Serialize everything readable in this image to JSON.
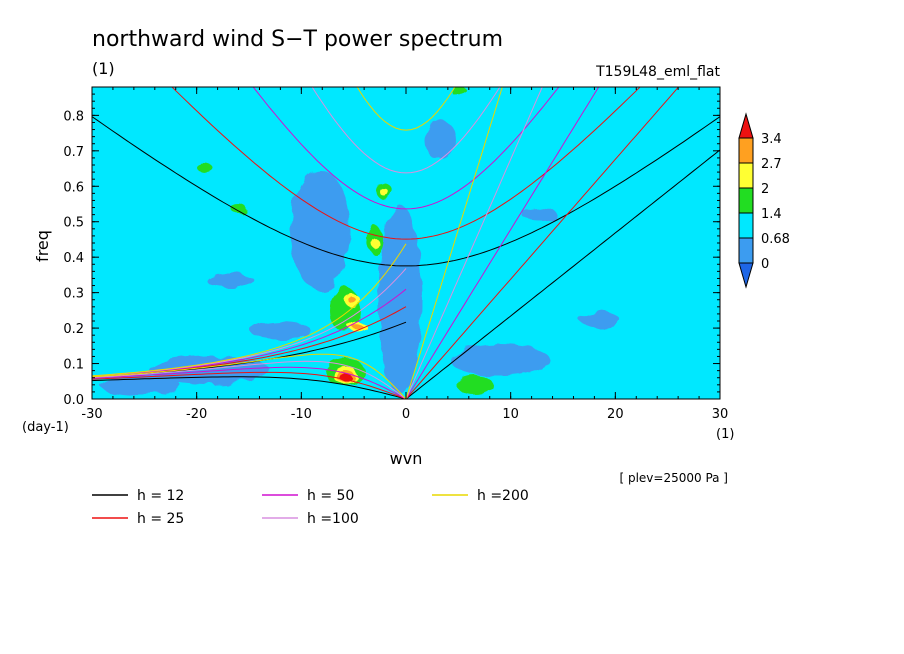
{
  "chart_data": {
    "type": "heatmap",
    "title": "northward wind S−T power spectrum",
    "units_label": "(1)",
    "case_label": "T159L48_eml_flat",
    "xlabel": "wvn",
    "ylabel": "freq",
    "x_units": "(1)",
    "y_units": "(day-1)",
    "note": "[ plev=25000 Pa ]",
    "xlim": [
      -30,
      30
    ],
    "ylim": [
      0,
      0.88
    ],
    "x_ticks": [
      -30,
      -20,
      -10,
      0,
      10,
      20,
      30
    ],
    "y_ticks": [
      0.0,
      0.1,
      0.2,
      0.3,
      0.4,
      0.5,
      0.6,
      0.7,
      0.8
    ],
    "colorbar": {
      "levels": [
        "0",
        "0.68",
        "1.4",
        "2",
        "2.7",
        "3.4"
      ],
      "colors": [
        "#1e66e6",
        "#3c9cf0",
        "#00e8ff",
        "#22dd22",
        "#ffff33",
        "#ffa020",
        "#ee1111"
      ]
    },
    "curves": [
      {
        "name": "h = 12",
        "h": 12,
        "color": "#000000"
      },
      {
        "name": "h = 25",
        "h": 25,
        "color": "#ee1111"
      },
      {
        "name": "h = 50",
        "h": 50,
        "color": "#d010d0"
      },
      {
        "name": "h =100",
        "h": 100,
        "color": "#d890e0"
      },
      {
        "name": "h =200",
        "h": 200,
        "color": "#e8d800"
      }
    ],
    "features": [
      {
        "k": -6,
        "f": 0.07,
        "level": 3.4
      },
      {
        "k": -5,
        "f": 0.27,
        "level": 2.7
      },
      {
        "k": -5,
        "f": 0.2,
        "level": 2.7
      },
      {
        "k": -2,
        "f": 0.44,
        "level": 2.7
      },
      {
        "k": -2,
        "f": 0.59,
        "level": 2.7
      },
      {
        "k": 8,
        "f": 0.04,
        "level": 2
      }
    ]
  }
}
